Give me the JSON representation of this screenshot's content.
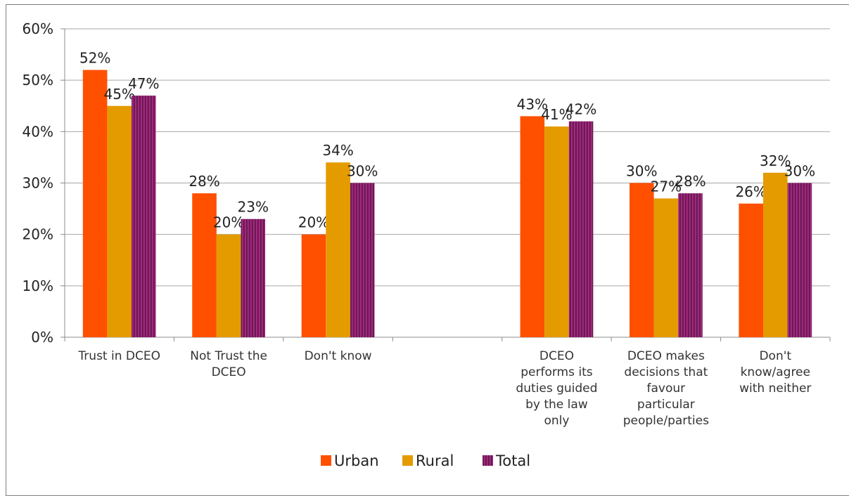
{
  "chart_data": {
    "type": "bar",
    "title": "",
    "xlabel": "",
    "ylabel": "",
    "ylim": [
      0,
      60
    ],
    "yticks": [
      "0%",
      "10%",
      "20%",
      "30%",
      "40%",
      "50%",
      "60%"
    ],
    "grid": true,
    "legend_position": "bottom",
    "categories": [
      [
        "Trust in DCEO"
      ],
      [
        "Not Trust the",
        "DCEO"
      ],
      [
        "Don't know"
      ],
      [],
      [
        "DCEO",
        "performs its",
        "duties guided",
        "by the law",
        "only"
      ],
      [
        "DCEO makes",
        "decisions that",
        "favour",
        "particular",
        "people/parties"
      ],
      [
        "Don't",
        "know/agree",
        "with neither"
      ]
    ],
    "series": [
      {
        "name": "Urban",
        "color": "#FF5000",
        "values": [
          52,
          28,
          20,
          null,
          43,
          30,
          26
        ],
        "labels": [
          "52%",
          "28%",
          "20%",
          "",
          "43%",
          "30%",
          "26%"
        ]
      },
      {
        "name": "Rural",
        "color": "#E49B00",
        "values": [
          45,
          20,
          34,
          null,
          41,
          27,
          32
        ],
        "labels": [
          "45%",
          "20%",
          "34%",
          "",
          "41%",
          "27%",
          "32%"
        ]
      },
      {
        "name": "Total",
        "color": "#6A1B52",
        "stripe": "#B02A8A",
        "values": [
          47,
          23,
          30,
          null,
          42,
          28,
          30
        ],
        "labels": [
          "47%",
          "23%",
          "30%",
          "",
          "42%",
          "28%",
          "30%"
        ]
      }
    ]
  }
}
